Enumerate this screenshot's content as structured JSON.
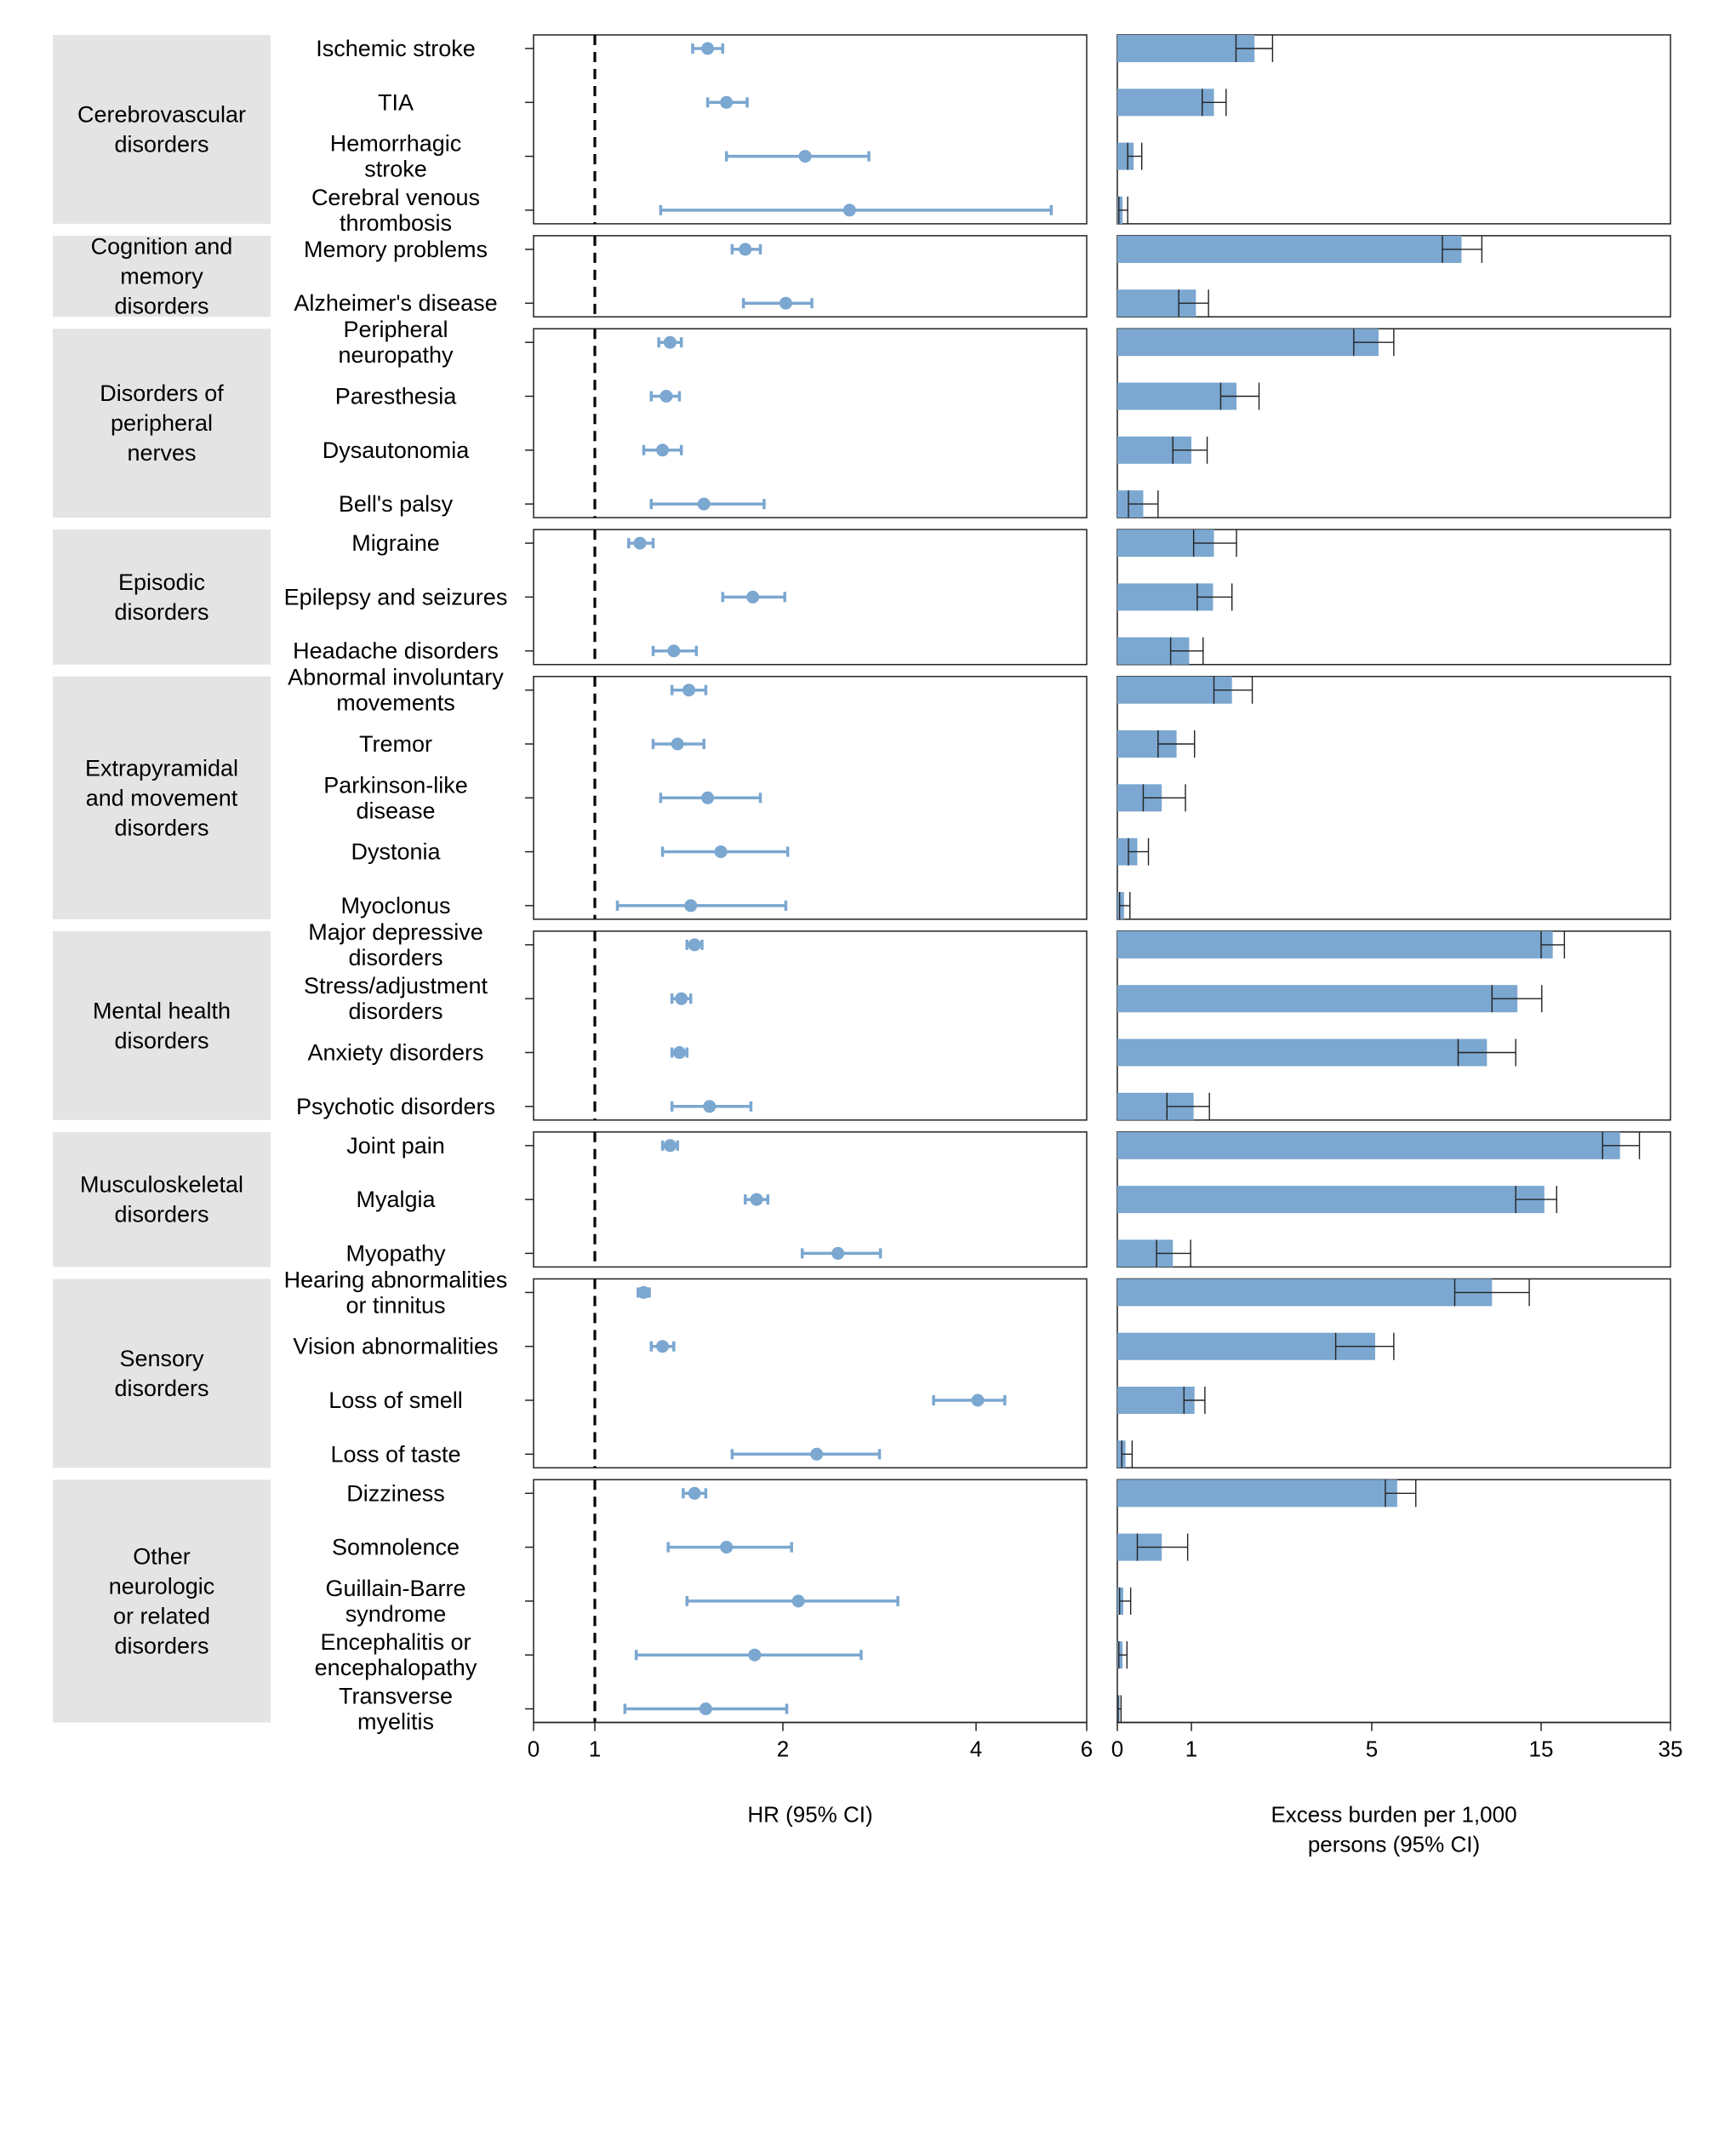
{
  "chart_data": [
    {
      "type": "forest",
      "xlabel": "HR (95% CI)",
      "xticks": [
        "0",
        "1",
        "2",
        "4",
        "6"
      ],
      "reference_line": 1,
      "color": "#7ba7d0"
    },
    {
      "type": "bar",
      "xlabel_lines": [
        "Excess burden per 1,000",
        "persons (95% CI)"
      ],
      "xticks": [
        "0",
        "1",
        "5",
        "15",
        "35"
      ],
      "color": "#7ba7d0"
    }
  ],
  "groups": [
    {
      "name": [
        "Cerebrovascular",
        "disorders"
      ],
      "rows": [
        {
          "label": [
            "Ischemic stroke"
          ],
          "hr": 1.6,
          "lo": 1.52,
          "hi": 1.68,
          "eb": 2.4,
          "eblo": 1.99,
          "ebhi": 2.8
        },
        {
          "label": [
            "TIA"
          ],
          "hr": 1.7,
          "lo": 1.6,
          "hi": 1.81,
          "eb": 1.5,
          "eblo": 1.24,
          "ebhi": 1.77
        },
        {
          "label": [
            "Hemorrhagic",
            "stroke"
          ],
          "hr": 2.23,
          "lo": 1.7,
          "hi": 2.89,
          "eb": 0.22,
          "eblo": 0.14,
          "ebhi": 0.33
        },
        {
          "label": [
            "Cerebral venous",
            "thrombosis"
          ],
          "hr": 2.69,
          "lo": 1.35,
          "hi": 5.36,
          "eb": 0.07,
          "eblo": 0.02,
          "ebhi": 0.14
        }
      ]
    },
    {
      "name": [
        "Cognition and",
        "memory",
        "disorders"
      ],
      "rows": [
        {
          "label": [
            "Memory problems"
          ],
          "hr": 1.8,
          "lo": 1.73,
          "hi": 1.88,
          "eb": 10.3,
          "eblo": 9.17,
          "ebhi": 11.5
        },
        {
          "label": [
            "Alzheimer's disease"
          ],
          "hr": 2.03,
          "lo": 1.79,
          "hi": 2.3,
          "eb": 1.1,
          "eblo": 0.83,
          "ebhi": 1.38
        }
      ]
    },
    {
      "name": [
        "Disorders of",
        "peripheral",
        "nerves"
      ],
      "rows": [
        {
          "label": [
            "Peripheral",
            "neuropathy"
          ],
          "hr": 1.4,
          "lo": 1.34,
          "hi": 1.46,
          "eb": 5.4,
          "eblo": 4.6,
          "ebhi": 6.3
        },
        {
          "label": [
            "Paresthesia"
          ],
          "hr": 1.38,
          "lo": 1.3,
          "hi": 1.45,
          "eb": 2.0,
          "eblo": 1.65,
          "ebhi": 2.5
        },
        {
          "label": [
            "Dysautonomia"
          ],
          "hr": 1.36,
          "lo": 1.26,
          "hi": 1.46,
          "eb": 1.0,
          "eblo": 0.75,
          "ebhi": 1.35
        },
        {
          "label": [
            "Bell's palsy"
          ],
          "hr": 1.58,
          "lo": 1.3,
          "hi": 1.9,
          "eb": 0.35,
          "eblo": 0.15,
          "ebhi": 0.55
        }
      ]
    },
    {
      "name": [
        "Episodic",
        "disorders"
      ],
      "rows": [
        {
          "label": [
            "Migraine"
          ],
          "hr": 1.24,
          "lo": 1.18,
          "hi": 1.31,
          "eb": 1.5,
          "eblo": 1.05,
          "ebhi": 2.0
        },
        {
          "label": [
            "Epilepsy and seizures"
          ],
          "hr": 1.84,
          "lo": 1.68,
          "hi": 2.02,
          "eb": 1.48,
          "eblo": 1.13,
          "ebhi": 1.9
        },
        {
          "label": [
            "Headache disorders"
          ],
          "hr": 1.42,
          "lo": 1.31,
          "hi": 1.54,
          "eb": 0.97,
          "eblo": 0.72,
          "ebhi": 1.26
        }
      ]
    },
    {
      "name": [
        "Extrapyramidal",
        "and movement",
        "disorders"
      ],
      "rows": [
        {
          "label": [
            "Abnormal involuntary",
            "movements"
          ],
          "hr": 1.5,
          "lo": 1.41,
          "hi": 1.59,
          "eb": 1.9,
          "eblo": 1.5,
          "ebhi": 2.35
        },
        {
          "label": [
            "Tremor"
          ],
          "hr": 1.44,
          "lo": 1.31,
          "hi": 1.58,
          "eb": 0.8,
          "eblo": 0.55,
          "ebhi": 1.07
        },
        {
          "label": [
            "Parkinson-like",
            "disease"
          ],
          "hr": 1.6,
          "lo": 1.35,
          "hi": 1.88,
          "eb": 0.6,
          "eblo": 0.35,
          "ebhi": 0.92
        },
        {
          "label": [
            "Dystonia"
          ],
          "hr": 1.67,
          "lo": 1.36,
          "hi": 2.05,
          "eb": 0.27,
          "eblo": 0.15,
          "ebhi": 0.42
        },
        {
          "label": [
            "Myoclonus"
          ],
          "hr": 1.51,
          "lo": 1.12,
          "hi": 2.03,
          "eb": 0.09,
          "eblo": 0.03,
          "ebhi": 0.17
        }
      ]
    },
    {
      "name": [
        "Mental health",
        "disorders"
      ],
      "rows": [
        {
          "label": [
            "Major depressive",
            "disorders"
          ],
          "hr": 1.53,
          "lo": 1.49,
          "hi": 1.57,
          "eb": 16.8,
          "eblo": 15.0,
          "ebhi": 18.6
        },
        {
          "label": [
            "Stress/adjustment",
            "disorders"
          ],
          "hr": 1.46,
          "lo": 1.41,
          "hi": 1.51,
          "eb": 13.6,
          "eblo": 12.1,
          "ebhi": 15.1
        },
        {
          "label": [
            "Anxiety disorders"
          ],
          "hr": 1.45,
          "lo": 1.41,
          "hi": 1.49,
          "eb": 11.8,
          "eblo": 10.1,
          "ebhi": 13.5
        },
        {
          "label": [
            "Psychotic disorders"
          ],
          "hr": 1.61,
          "lo": 1.41,
          "hi": 1.83,
          "eb": 1.05,
          "eblo": 0.67,
          "ebhi": 1.4
        }
      ]
    },
    {
      "name": [
        "Musculoskeletal",
        "disorders"
      ],
      "rows": [
        {
          "label": [
            "Joint pain"
          ],
          "hr": 1.4,
          "lo": 1.36,
          "hi": 1.44,
          "eb": 27.2,
          "eblo": 24.5,
          "ebhi": 30.2
        },
        {
          "label": [
            "Myalgia"
          ],
          "hr": 1.86,
          "lo": 1.8,
          "hi": 1.92,
          "eb": 15.5,
          "eblo": 13.5,
          "ebhi": 17.4
        },
        {
          "label": [
            "Myopathy"
          ],
          "hr": 2.57,
          "lo": 2.2,
          "hi": 3.01,
          "eb": 0.75,
          "eblo": 0.53,
          "ebhi": 0.99
        }
      ]
    },
    {
      "name": [
        "Sensory",
        "disorders"
      ],
      "rows": [
        {
          "label": [
            "Hearing abnormalities",
            "or tinnitus"
          ],
          "hr": 1.26,
          "lo": 1.23,
          "hi": 1.29,
          "eb": 12.1,
          "eblo": 9.9,
          "ebhi": 14.3
        },
        {
          "label": [
            "Vision abnormalities"
          ],
          "hr": 1.36,
          "lo": 1.3,
          "hi": 1.42,
          "eb": 5.2,
          "eblo": 4.2,
          "ebhi": 6.3
        },
        {
          "label": [
            "Loss of smell"
          ],
          "hr": 4.03,
          "lo": 3.56,
          "hi": 4.52,
          "eb": 1.07,
          "eblo": 0.9,
          "ebhi": 1.3
        },
        {
          "label": [
            "Loss of taste"
          ],
          "hr": 2.35,
          "lo": 1.73,
          "hi": 3.0,
          "eb": 0.11,
          "eblo": 0.06,
          "ebhi": 0.2
        }
      ]
    },
    {
      "name": [
        "Other",
        "neurologic",
        "or related",
        "disorders"
      ],
      "rows": [
        {
          "label": [
            "Dizziness"
          ],
          "hr": 1.53,
          "lo": 1.47,
          "hi": 1.59,
          "eb": 6.5,
          "eblo": 5.8,
          "ebhi": 7.6
        },
        {
          "label": [
            "Somnolence"
          ],
          "hr": 1.7,
          "lo": 1.39,
          "hi": 2.09,
          "eb": 0.6,
          "eblo": 0.27,
          "ebhi": 0.95
        },
        {
          "label": [
            "Guillain-Barre",
            "syndrome"
          ],
          "hr": 2.16,
          "lo": 1.49,
          "hi": 3.19,
          "eb": 0.08,
          "eblo": 0.03,
          "ebhi": 0.18
        },
        {
          "label": [
            "Encephalitis or",
            "encephalopathy"
          ],
          "hr": 1.85,
          "lo": 1.22,
          "hi": 2.81,
          "eb": 0.07,
          "eblo": 0.02,
          "ebhi": 0.13
        },
        {
          "label": [
            "Transverse",
            "myelitis"
          ],
          "hr": 1.59,
          "lo": 1.16,
          "hi": 2.04,
          "eb": 0.03,
          "eblo": 0.01,
          "ebhi": 0.05
        }
      ]
    }
  ]
}
